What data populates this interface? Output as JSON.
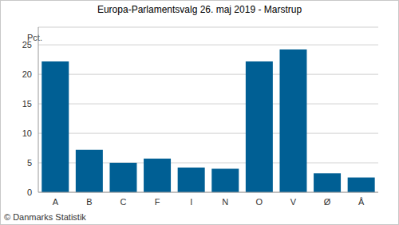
{
  "chart_data": {
    "type": "bar",
    "title": "Europa-Parlamentsvalg 26. maj 2019 - Marstrup",
    "y_label": "Pct.",
    "source": "© Danmarks Statistik",
    "categories": [
      "A",
      "B",
      "C",
      "F",
      "I",
      "N",
      "O",
      "V",
      "Ø",
      "Å"
    ],
    "values": [
      22.2,
      7.2,
      5.0,
      5.7,
      4.2,
      4.0,
      22.2,
      24.2,
      3.2,
      2.5
    ],
    "color": "#005f94",
    "ylim": [
      0,
      28
    ],
    "yticks": [
      0,
      5,
      10,
      15,
      20,
      25
    ],
    "grid": true
  }
}
